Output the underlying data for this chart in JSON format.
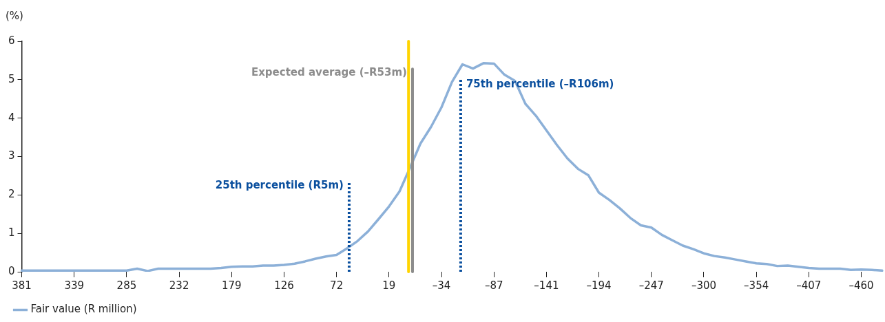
{
  "chart_data": {
    "type": "line",
    "ylabel": "(%)",
    "categories": [
      "381",
      null,
      null,
      null,
      null,
      "339",
      null,
      null,
      null,
      null,
      "285",
      null,
      null,
      null,
      null,
      "232",
      null,
      null,
      null,
      null,
      "179",
      null,
      null,
      null,
      null,
      "126",
      null,
      null,
      null,
      null,
      "72",
      null,
      null,
      null,
      null,
      "19",
      null,
      null,
      null,
      null,
      "–34",
      null,
      null,
      null,
      null,
      "–87",
      null,
      null,
      null,
      null,
      "–141",
      null,
      null,
      null,
      null,
      "–194",
      null,
      null,
      null,
      null,
      "–247",
      null,
      null,
      null,
      null,
      "–300",
      null,
      null,
      null,
      null,
      "–354",
      null,
      null,
      null,
      null,
      "–407",
      null,
      null,
      null,
      null,
      "–460",
      null,
      null
    ],
    "series": [
      {
        "name": "Fair value (R million)",
        "color": "#8cb0d8",
        "values": [
          0.03,
          0.03,
          0.03,
          0.03,
          0.03,
          0.03,
          0.03,
          0.03,
          0.03,
          0.03,
          0.03,
          0.08,
          0.02,
          0.08,
          0.08,
          0.08,
          0.08,
          0.08,
          0.08,
          0.1,
          0.13,
          0.14,
          0.14,
          0.16,
          0.16,
          0.18,
          0.21,
          0.27,
          0.34,
          0.4,
          0.44,
          0.61,
          0.8,
          1.05,
          1.37,
          1.7,
          2.09,
          2.71,
          3.34,
          3.77,
          4.28,
          4.94,
          5.4,
          5.29,
          5.43,
          5.42,
          5.13,
          4.97,
          4.37,
          4.06,
          3.68,
          3.3,
          2.95,
          2.68,
          2.51,
          2.06,
          1.87,
          1.65,
          1.4,
          1.21,
          1.15,
          0.96,
          0.82,
          0.68,
          0.59,
          0.48,
          0.41,
          0.37,
          0.32,
          0.27,
          0.22,
          0.2,
          0.15,
          0.16,
          0.13,
          0.1,
          0.08,
          0.08,
          0.08,
          0.05,
          0.06,
          0.05,
          0.03
        ]
      }
    ],
    "ylim": [
      0,
      6
    ],
    "yticks": [
      0,
      1,
      2,
      3,
      4,
      5,
      6
    ],
    "grid": false,
    "legend": "bottom left",
    "marker": "none",
    "line_style": "solid",
    "annotations": [
      "Expected average (–R53m)",
      "25th percentile (R5m)",
      "75th percentile (–R106m)"
    ]
  }
}
